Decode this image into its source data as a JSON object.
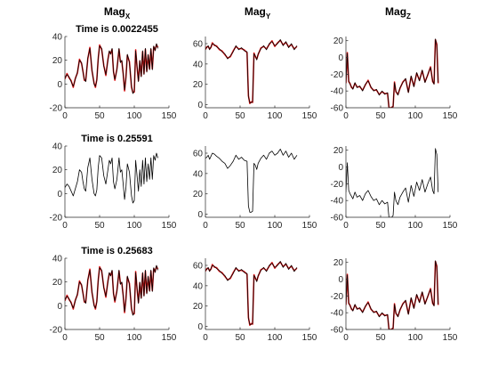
{
  "chart_data": {
    "type": "line",
    "columns": [
      {
        "base": "Mag",
        "sub": "X"
      },
      {
        "base": "Mag",
        "sub": "Y"
      },
      {
        "base": "Mag",
        "sub": "Z"
      }
    ],
    "panels": [
      {
        "row": 0,
        "col": 0,
        "title": "Time is 0.0022455",
        "xlim": [
          0,
          150
        ],
        "ylim": [
          -20,
          40
        ],
        "xticks": [
          0,
          50,
          100,
          150
        ],
        "yticks": [
          -20,
          0,
          20,
          40
        ],
        "x": [
          0,
          3,
          6,
          9,
          12,
          15,
          18,
          21,
          24,
          26,
          28,
          30,
          33,
          36,
          39,
          42,
          44,
          46,
          48,
          50,
          53,
          56,
          59,
          62,
          64,
          66,
          68,
          70,
          72,
          75,
          78,
          80,
          82,
          84,
          86,
          88,
          90,
          93,
          96,
          98,
          100,
          102,
          104,
          106,
          108,
          110,
          112,
          114,
          116,
          118,
          120,
          122,
          124,
          126,
          128,
          130,
          132,
          134
        ],
        "y": [
          5,
          8,
          6,
          2,
          -2,
          4,
          10,
          20,
          18,
          10,
          4,
          2,
          22,
          30,
          12,
          0,
          -2,
          3,
          22,
          32,
          30,
          15,
          8,
          20,
          28,
          25,
          30,
          10,
          4,
          12,
          30,
          18,
          20,
          8,
          -5,
          5,
          25,
          18,
          -2,
          -8,
          -6,
          28,
          15,
          2,
          20,
          6,
          28,
          8,
          30,
          10,
          25,
          12,
          30,
          12,
          32,
          28,
          34,
          30
        ],
        "series": [
          {
            "color": "#e41a1c",
            "role": "red"
          },
          {
            "color": "#000000",
            "role": "black"
          }
        ]
      },
      {
        "row": 0,
        "col": 1,
        "title": "",
        "xlim": [
          0,
          150
        ],
        "ylim": [
          -3,
          67
        ],
        "xticks": [
          0,
          50,
          100,
          150
        ],
        "yticks": [
          0,
          20,
          40,
          60
        ],
        "x": [
          0,
          2,
          4,
          6,
          8,
          10,
          13,
          16,
          20,
          24,
          28,
          32,
          36,
          40,
          44,
          48,
          52,
          56,
          60,
          62,
          64,
          66,
          68,
          70,
          72,
          74,
          76,
          80,
          84,
          88,
          92,
          96,
          100,
          104,
          108,
          112,
          116,
          120,
          124,
          128,
          132
        ],
        "y": [
          55,
          56,
          58,
          54,
          57,
          60,
          59,
          57,
          55,
          52,
          50,
          45,
          48,
          52,
          58,
          54,
          56,
          53,
          52,
          8,
          2,
          2,
          3,
          50,
          48,
          44,
          50,
          55,
          58,
          54,
          60,
          62,
          58,
          60,
          64,
          58,
          62,
          56,
          60,
          54,
          58
        ],
        "series": [
          {
            "color": "#e41a1c",
            "role": "red"
          },
          {
            "color": "#000000",
            "role": "black"
          }
        ]
      },
      {
        "row": 0,
        "col": 2,
        "title": "",
        "xlim": [
          0,
          150
        ],
        "ylim": [
          -60,
          25
        ],
        "xticks": [
          0,
          50,
          100,
          150
        ],
        "yticks": [
          -60,
          -40,
          -20,
          0,
          20
        ],
        "x": [
          0,
          2,
          4,
          6,
          8,
          10,
          13,
          16,
          20,
          24,
          28,
          32,
          36,
          40,
          44,
          48,
          52,
          56,
          60,
          62,
          64,
          66,
          68,
          70,
          72,
          75,
          78,
          82,
          86,
          90,
          94,
          98,
          102,
          106,
          110,
          114,
          118,
          122,
          125,
          127,
          129,
          131,
          133
        ],
        "y": [
          -30,
          5,
          -28,
          -32,
          -35,
          -38,
          -30,
          -36,
          -34,
          -40,
          -32,
          -28,
          -35,
          -40,
          -38,
          -45,
          -40,
          -44,
          -42,
          -60,
          -60,
          -60,
          -58,
          -30,
          -40,
          -45,
          -36,
          -30,
          -25,
          -42,
          -22,
          -35,
          -18,
          -28,
          -15,
          -30,
          -20,
          -12,
          -28,
          -32,
          22,
          15,
          -30
        ],
        "series": [
          {
            "color": "#e41a1c",
            "role": "red"
          },
          {
            "color": "#000000",
            "role": "black"
          }
        ]
      },
      {
        "row": 1,
        "col": 0,
        "title": "Time is 0.25591",
        "xlim": [
          0,
          150
        ],
        "ylim": [
          -20,
          40
        ],
        "xticks": [
          0,
          50,
          100,
          150
        ],
        "yticks": [
          -20,
          0,
          20,
          40
        ],
        "x": [
          0,
          3,
          6,
          9,
          12,
          15,
          18,
          21,
          24,
          26,
          28,
          30,
          33,
          36,
          39,
          42,
          44,
          46,
          48,
          50,
          53,
          56,
          59,
          62,
          64,
          66,
          68,
          70,
          72,
          75,
          78,
          80,
          82,
          84,
          86,
          88,
          90,
          93,
          96,
          98,
          100,
          102,
          104,
          106,
          108,
          110,
          112,
          114,
          116,
          118,
          120,
          122,
          124,
          126,
          128,
          130,
          132,
          134
        ],
        "y": [
          5,
          8,
          6,
          2,
          -2,
          4,
          10,
          20,
          18,
          10,
          4,
          2,
          22,
          30,
          12,
          0,
          -2,
          3,
          22,
          32,
          30,
          15,
          8,
          20,
          28,
          25,
          30,
          10,
          4,
          12,
          30,
          18,
          20,
          8,
          -5,
          5,
          25,
          18,
          -2,
          -8,
          -6,
          28,
          15,
          2,
          20,
          6,
          28,
          8,
          30,
          10,
          25,
          12,
          30,
          12,
          32,
          28,
          34,
          30
        ],
        "series": [
          {
            "color": "#000000",
            "role": "black"
          }
        ]
      },
      {
        "row": 1,
        "col": 1,
        "title": "",
        "xlim": [
          0,
          150
        ],
        "ylim": [
          -3,
          67
        ],
        "xticks": [
          0,
          50,
          100,
          150
        ],
        "yticks": [
          0,
          20,
          40,
          60
        ],
        "x": [
          0,
          2,
          4,
          6,
          8,
          10,
          13,
          16,
          20,
          24,
          28,
          32,
          36,
          40,
          44,
          48,
          52,
          56,
          60,
          62,
          64,
          66,
          68,
          70,
          72,
          74,
          76,
          80,
          84,
          88,
          92,
          96,
          100,
          104,
          108,
          112,
          116,
          120,
          124,
          128,
          132
        ],
        "y": [
          55,
          56,
          58,
          54,
          57,
          60,
          59,
          57,
          55,
          52,
          50,
          45,
          48,
          52,
          58,
          54,
          56,
          53,
          52,
          8,
          2,
          2,
          3,
          50,
          48,
          44,
          50,
          55,
          58,
          54,
          60,
          62,
          58,
          60,
          64,
          58,
          62,
          56,
          60,
          54,
          58
        ],
        "series": [
          {
            "color": "#000000",
            "role": "black"
          }
        ]
      },
      {
        "row": 1,
        "col": 2,
        "title": "",
        "xlim": [
          0,
          150
        ],
        "ylim": [
          -60,
          25
        ],
        "xticks": [
          0,
          50,
          100,
          150
        ],
        "yticks": [
          -60,
          -40,
          -20,
          0,
          20
        ],
        "x": [
          0,
          2,
          4,
          6,
          8,
          10,
          13,
          16,
          20,
          24,
          28,
          32,
          36,
          40,
          44,
          48,
          52,
          56,
          60,
          62,
          64,
          66,
          68,
          70,
          72,
          75,
          78,
          82,
          86,
          90,
          94,
          98,
          102,
          106,
          110,
          114,
          118,
          122,
          125,
          127,
          129,
          131,
          133
        ],
        "y": [
          -30,
          5,
          -28,
          -32,
          -35,
          -38,
          -30,
          -36,
          -34,
          -40,
          -32,
          -28,
          -35,
          -40,
          -38,
          -45,
          -40,
          -44,
          -42,
          -60,
          -60,
          -60,
          -58,
          -30,
          -40,
          -45,
          -36,
          -30,
          -25,
          -42,
          -22,
          -35,
          -18,
          -28,
          -15,
          -30,
          -20,
          -12,
          -28,
          -32,
          22,
          15,
          -30
        ],
        "series": [
          {
            "color": "#000000",
            "role": "black"
          }
        ]
      },
      {
        "row": 2,
        "col": 0,
        "title": "Time is 0.25683",
        "xlim": [
          0,
          150
        ],
        "ylim": [
          -20,
          40
        ],
        "xticks": [
          0,
          50,
          100,
          150
        ],
        "yticks": [
          -20,
          0,
          20,
          40
        ],
        "x": [
          0,
          3,
          6,
          9,
          12,
          15,
          18,
          21,
          24,
          26,
          28,
          30,
          33,
          36,
          39,
          42,
          44,
          46,
          48,
          50,
          53,
          56,
          59,
          62,
          64,
          66,
          68,
          70,
          72,
          75,
          78,
          80,
          82,
          84,
          86,
          88,
          90,
          93,
          96,
          98,
          100,
          102,
          104,
          106,
          108,
          110,
          112,
          114,
          116,
          118,
          120,
          122,
          124,
          126,
          128,
          130,
          132,
          134
        ],
        "y": [
          5,
          8,
          6,
          2,
          -2,
          4,
          10,
          20,
          18,
          10,
          4,
          2,
          22,
          30,
          12,
          0,
          -2,
          3,
          22,
          32,
          30,
          15,
          8,
          20,
          28,
          25,
          30,
          10,
          4,
          12,
          30,
          18,
          20,
          8,
          -5,
          5,
          25,
          18,
          -2,
          -8,
          -6,
          28,
          15,
          2,
          20,
          6,
          28,
          8,
          30,
          10,
          25,
          12,
          30,
          12,
          32,
          28,
          34,
          30
        ],
        "series": [
          {
            "color": "#e41a1c",
            "role": "red"
          },
          {
            "color": "#000000",
            "role": "black"
          }
        ]
      },
      {
        "row": 2,
        "col": 1,
        "title": "",
        "xlim": [
          0,
          150
        ],
        "ylim": [
          -3,
          67
        ],
        "xticks": [
          0,
          50,
          100,
          150
        ],
        "yticks": [
          0,
          20,
          40,
          60
        ],
        "x": [
          0,
          2,
          4,
          6,
          8,
          10,
          13,
          16,
          20,
          24,
          28,
          32,
          36,
          40,
          44,
          48,
          52,
          56,
          60,
          62,
          64,
          66,
          68,
          70,
          72,
          74,
          76,
          80,
          84,
          88,
          92,
          96,
          100,
          104,
          108,
          112,
          116,
          120,
          124,
          128,
          132
        ],
        "y": [
          55,
          56,
          58,
          54,
          57,
          60,
          59,
          57,
          55,
          52,
          50,
          45,
          48,
          52,
          58,
          54,
          56,
          53,
          52,
          8,
          2,
          2,
          3,
          50,
          48,
          44,
          50,
          55,
          58,
          54,
          60,
          62,
          58,
          60,
          64,
          58,
          62,
          56,
          60,
          54,
          58
        ],
        "series": [
          {
            "color": "#e41a1c",
            "role": "red"
          },
          {
            "color": "#000000",
            "role": "black"
          }
        ]
      },
      {
        "row": 2,
        "col": 2,
        "title": "",
        "xlim": [
          0,
          150
        ],
        "ylim": [
          -60,
          25
        ],
        "xticks": [
          0,
          50,
          100,
          150
        ],
        "yticks": [
          -60,
          -40,
          -20,
          0,
          20
        ],
        "x": [
          0,
          2,
          4,
          6,
          8,
          10,
          13,
          16,
          20,
          24,
          28,
          32,
          36,
          40,
          44,
          48,
          52,
          56,
          60,
          62,
          64,
          66,
          68,
          70,
          72,
          75,
          78,
          82,
          86,
          90,
          94,
          98,
          102,
          106,
          110,
          114,
          118,
          122,
          125,
          127,
          129,
          131,
          133
        ],
        "y": [
          -30,
          5,
          -28,
          -32,
          -35,
          -38,
          -30,
          -36,
          -34,
          -40,
          -32,
          -28,
          -35,
          -40,
          -38,
          -45,
          -40,
          -44,
          -42,
          -60,
          -60,
          -60,
          -58,
          -30,
          -40,
          -45,
          -36,
          -30,
          -25,
          -42,
          -22,
          -35,
          -18,
          -28,
          -15,
          -30,
          -20,
          -12,
          -28,
          -32,
          22,
          15,
          -30
        ],
        "series": [
          {
            "color": "#e41a1c",
            "role": "red"
          },
          {
            "color": "#000000",
            "role": "black"
          }
        ]
      }
    ]
  }
}
